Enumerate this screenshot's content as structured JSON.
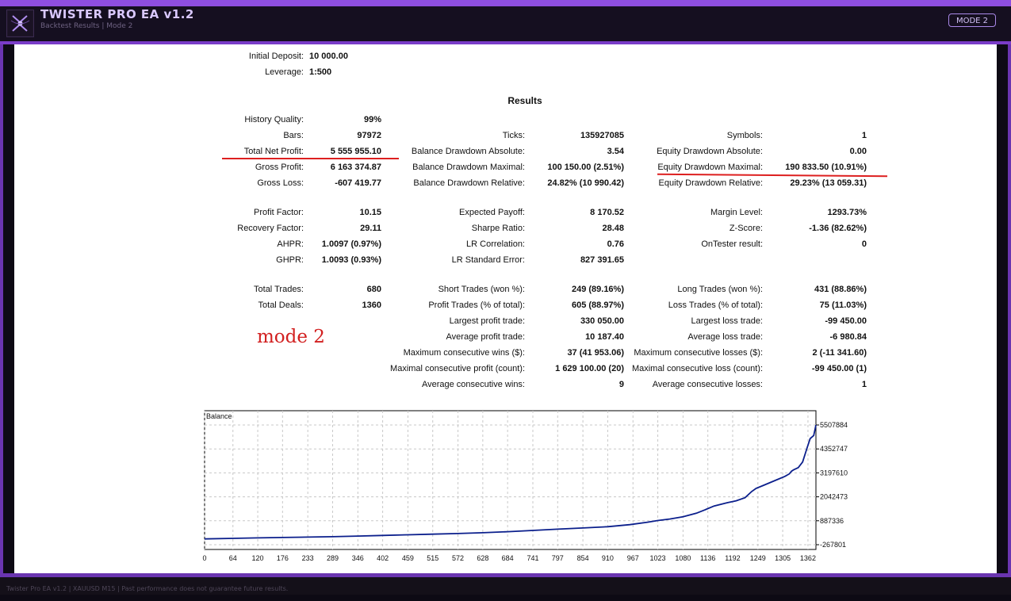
{
  "app": {
    "title": "TWISTER PRO EA  v1.2",
    "subtitle": "Backtest Results  |  Mode 2",
    "mode_button": "MODE 2",
    "logo_icon": "twister-logo-icon",
    "accent_color": "#8e4ee0"
  },
  "settings": [
    {
      "label": "Initial Deposit:",
      "value": "10 000.00"
    },
    {
      "label": "Leverage:",
      "value": "1:500"
    }
  ],
  "results_title": "Results",
  "columns": {
    "col1": [
      {
        "label": "History Quality:",
        "value": "99%"
      },
      {
        "label": "Bars:",
        "value": "97972"
      },
      {
        "label": "Total Net Profit:",
        "value": "5 555 955.10"
      },
      {
        "label": "Gross Profit:",
        "value": "6 163 374.87"
      },
      {
        "label": "Gross Loss:",
        "value": "-607 419.77"
      },
      {
        "label": "Profit Factor:",
        "value": "10.15"
      },
      {
        "label": "Recovery Factor:",
        "value": "29.11"
      },
      {
        "label": "AHPR:",
        "value": "1.0097 (0.97%)"
      },
      {
        "label": "GHPR:",
        "value": "1.0093 (0.93%)"
      },
      {
        "label": "Total Trades:",
        "value": "680"
      },
      {
        "label": "Total Deals:",
        "value": "1360"
      }
    ],
    "col2": [
      {
        "label": "Ticks:",
        "value": "135927085"
      },
      {
        "label": "Balance Drawdown Absolute:",
        "value": "3.54"
      },
      {
        "label": "Balance Drawdown Maximal:",
        "value": "100 150.00 (2.51%)"
      },
      {
        "label": "Balance Drawdown Relative:",
        "value": "24.82% (10 990.42)"
      },
      {
        "label": "Expected Payoff:",
        "value": "8 170.52"
      },
      {
        "label": "Sharpe Ratio:",
        "value": "28.48"
      },
      {
        "label": "LR Correlation:",
        "value": "0.76"
      },
      {
        "label": "LR Standard Error:",
        "value": "827 391.65"
      },
      {
        "label": "Short Trades (won %):",
        "value": "249 (89.16%)"
      },
      {
        "label": "Profit Trades (% of total):",
        "value": "605 (88.97%)"
      },
      {
        "label": "Largest profit trade:",
        "value": "330 050.00"
      },
      {
        "label": "Average profit trade:",
        "value": "10 187.40"
      },
      {
        "label": "Maximum consecutive wins ($):",
        "value": "37 (41 953.06)"
      },
      {
        "label": "Maximal consecutive profit (count):",
        "value": "1 629 100.00 (20)"
      },
      {
        "label": "Average consecutive wins:",
        "value": "9"
      }
    ],
    "col3": [
      {
        "label": "Symbols:",
        "value": "1"
      },
      {
        "label": "Equity Drawdown Absolute:",
        "value": "0.00"
      },
      {
        "label": "Equity Drawdown Maximal:",
        "value": "190 833.50 (10.91%)"
      },
      {
        "label": "Equity Drawdown Relative:",
        "value": "29.23% (13 059.31)"
      },
      {
        "label": "Margin Level:",
        "value": "1293.73%"
      },
      {
        "label": "Z-Score:",
        "value": "-1.36 (82.62%)"
      },
      {
        "label": "OnTester result:",
        "value": "0"
      },
      {
        "label": "Long Trades (won %):",
        "value": "431 (88.86%)"
      },
      {
        "label": "Loss Trades (% of total):",
        "value": "75 (11.03%)"
      },
      {
        "label": "Largest loss trade:",
        "value": "-99 450.00"
      },
      {
        "label": "Average loss trade:",
        "value": "-6 980.84"
      },
      {
        "label": "Maximum consecutive losses ($):",
        "value": "2 (-11 341.60)"
      },
      {
        "label": "Maximal consecutive loss (count):",
        "value": "-99 450.00 (1)"
      },
      {
        "label": "Average consecutive losses:",
        "value": "1"
      }
    ]
  },
  "annotation": "mode 2",
  "highlight_color": "#dd1f1f",
  "chart_data": {
    "type": "line",
    "title": "Balance",
    "line_color": "#0b1f8c",
    "grid": true,
    "x_ticks": [
      "0",
      "64",
      "120",
      "176",
      "233",
      "289",
      "346",
      "402",
      "459",
      "515",
      "572",
      "628",
      "684",
      "741",
      "797",
      "854",
      "910",
      "967",
      "1023",
      "1080",
      "1136",
      "1192",
      "1249",
      "1305",
      "1362"
    ],
    "y_ticks": [
      "5507884",
      "4352747",
      "3197610",
      "2042473",
      "887336",
      "-267801"
    ],
    "xlim": [
      0,
      1380
    ],
    "ylim": [
      -267801,
      5507884
    ],
    "series": [
      {
        "x": [
          0,
          64,
          120,
          176,
          233,
          289,
          346,
          402,
          459,
          515,
          572,
          628,
          684,
          741,
          797,
          854,
          910,
          960,
          1000,
          1023,
          1050,
          1080,
          1110,
          1130,
          1150,
          1180,
          1200,
          1220,
          1235,
          1245,
          1260,
          1290,
          1310,
          1320,
          1325,
          1330,
          1340,
          1350,
          1360,
          1367,
          1375,
          1380
        ],
        "y": [
          10000,
          40000,
          60000,
          80000,
          100000,
          120000,
          150000,
          180000,
          210000,
          240000,
          270000,
          310000,
          360000,
          420000,
          480000,
          540000,
          600000,
          700000,
          820000,
          900000,
          970000,
          1080000,
          1250000,
          1420000,
          1600000,
          1760000,
          1850000,
          2000000,
          2300000,
          2450000,
          2580000,
          2850000,
          3030000,
          3150000,
          3280000,
          3350000,
          3450000,
          3720000,
          4400000,
          4850000,
          5000000,
          5507884
        ]
      }
    ]
  },
  "footer": "Twister Pro EA v1.2  |  XAUUSD M15  |  Past performance does not guarantee future results."
}
